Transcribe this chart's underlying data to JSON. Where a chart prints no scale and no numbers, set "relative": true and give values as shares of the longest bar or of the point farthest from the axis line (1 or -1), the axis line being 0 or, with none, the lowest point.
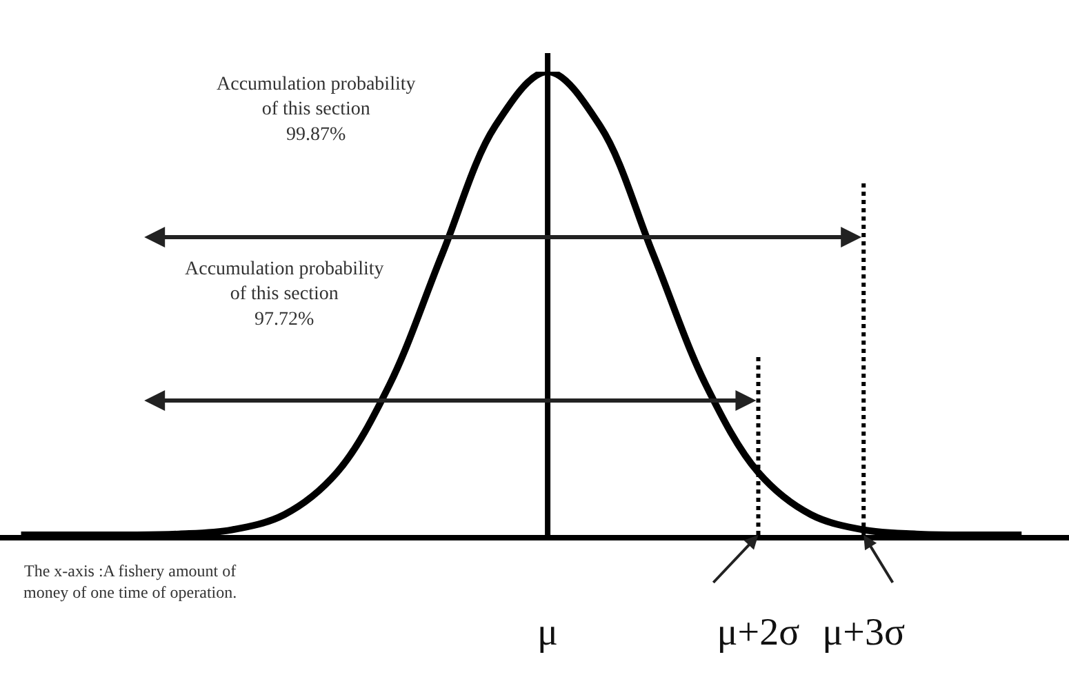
{
  "chart_data": {
    "type": "line",
    "relative": true,
    "categories": [
      null,
      null,
      null,
      null,
      null,
      null,
      null,
      null,
      null,
      null,
      "μ",
      null,
      null,
      null,
      "μ+2σ",
      null,
      "μ+3σ",
      null,
      null,
      null
    ],
    "series": [
      {
        "color": "#000000",
        "values": [
          0,
          0,
          0,
          0.002,
          0.011,
          0.044,
          0.135,
          0.325,
          0.607,
          0.882,
          1,
          0.882,
          0.607,
          0.325,
          0.135,
          0.044,
          0.011,
          0.002,
          0,
          0
        ]
      }
    ],
    "ref_lines": [
      {
        "axis": "x",
        "value": "μ+2σ",
        "label": null,
        "color": "#000000",
        "line_style": "dotted"
      },
      {
        "axis": "x",
        "value": "μ+3σ",
        "label": null,
        "color": "#000000",
        "line_style": "dotted"
      }
    ],
    "annotations": [
      "Accumulation probability\nof this section\n99.87%",
      "Accumulation probability\nof this section\n97.72%",
      "The x-axis :A fishery amount of\nmoney of one time of operation."
    ],
    "grid": false,
    "marker": "none",
    "line_style": "solid"
  }
}
